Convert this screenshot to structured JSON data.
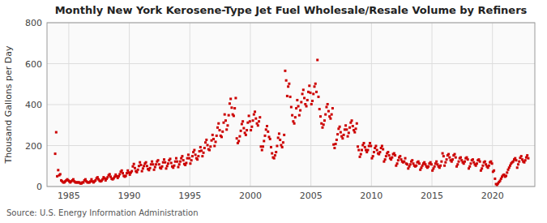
{
  "chart_data": {
    "type": "scatter",
    "title": "Monthly New York Kerosene-Type Jet Fuel Wholesale/Resale Volume by Refiners",
    "ylabel": "Thousand Gallons per Day",
    "source": "Source: U.S. Energy Information Administration",
    "color": "#cc0000",
    "marker": "square",
    "grid": true,
    "xlim": [
      1983.2,
      2023.5
    ],
    "ylim": [
      0,
      800
    ],
    "xticks": [
      1985,
      1990,
      1995,
      2000,
      2005,
      2010,
      2015,
      2020
    ],
    "yticks": [
      0,
      200,
      400,
      600,
      800
    ],
    "x": [
      1983.875,
      1983.9583333,
      1984.0416667,
      1984.125,
      1984.2083333,
      1984.2916667,
      1984.375,
      1984.4583333,
      1984.5416667,
      1984.625,
      1984.7083333,
      1984.7916667,
      1984.875,
      1984.9583333,
      1985.0416667,
      1985.125,
      1985.2083333,
      1985.2916667,
      1985.375,
      1985.4583333,
      1985.5416667,
      1985.625,
      1985.7083333,
      1985.7916667,
      1985.875,
      1985.9583333,
      1986.0416667,
      1986.125,
      1986.2083333,
      1986.2916667,
      1986.375,
      1986.4583333,
      1986.5416667,
      1986.625,
      1986.7083333,
      1986.7916667,
      1986.875,
      1986.9583333,
      1987.0416667,
      1987.125,
      1987.2083333,
      1987.2916667,
      1987.375,
      1987.4583333,
      1987.5416667,
      1987.625,
      1987.7083333,
      1987.7916667,
      1987.875,
      1987.9583333,
      1988.0416667,
      1988.125,
      1988.2083333,
      1988.2916667,
      1988.375,
      1988.4583333,
      1988.5416667,
      1988.625,
      1988.7083333,
      1988.7916667,
      1988.875,
      1988.9583333,
      1989.0416667,
      1989.125,
      1989.2083333,
      1989.2916667,
      1989.375,
      1989.4583333,
      1989.5416667,
      1989.625,
      1989.7083333,
      1989.7916667,
      1989.875,
      1989.9583333,
      1990.0416667,
      1990.125,
      1990.2083333,
      1990.2916667,
      1990.375,
      1990.4583333,
      1990.5416667,
      1990.625,
      1990.7083333,
      1990.7916667,
      1990.875,
      1990.9583333,
      1991.0416667,
      1991.125,
      1991.2083333,
      1991.2916667,
      1991.375,
      1991.4583333,
      1991.5416667,
      1991.625,
      1991.7083333,
      1991.7916667,
      1991.875,
      1991.9583333,
      1992.0416667,
      1992.125,
      1992.2083333,
      1992.2916667,
      1992.375,
      1992.4583333,
      1992.5416667,
      1992.625,
      1992.7083333,
      1992.7916667,
      1992.875,
      1992.9583333,
      1993.0416667,
      1993.125,
      1993.2083333,
      1993.2916667,
      1993.375,
      1993.4583333,
      1993.5416667,
      1993.625,
      1993.7083333,
      1993.7916667,
      1993.875,
      1993.9583333,
      1994.0416667,
      1994.125,
      1994.2083333,
      1994.2916667,
      1994.375,
      1994.4583333,
      1994.5416667,
      1994.625,
      1994.7083333,
      1994.7916667,
      1994.875,
      1994.9583333,
      1995.0416667,
      1995.125,
      1995.2083333,
      1995.2916667,
      1995.375,
      1995.4583333,
      1995.5416667,
      1995.625,
      1995.7083333,
      1995.7916667,
      1995.875,
      1995.9583333,
      1996.0416667,
      1996.125,
      1996.2083333,
      1996.2916667,
      1996.375,
      1996.4583333,
      1996.5416667,
      1996.625,
      1996.7083333,
      1996.7916667,
      1996.875,
      1996.9583333,
      1997.0416667,
      1997.125,
      1997.2083333,
      1997.2916667,
      1997.375,
      1997.4583333,
      1997.5416667,
      1997.625,
      1997.7083333,
      1997.7916667,
      1997.875,
      1997.9583333,
      1998.0416667,
      1998.125,
      1998.2083333,
      1998.2916667,
      1998.375,
      1998.4583333,
      1998.5416667,
      1998.625,
      1998.7083333,
      1998.7916667,
      1998.875,
      1998.9583333,
      1999.0416667,
      1999.125,
      1999.2083333,
      1999.2916667,
      1999.375,
      1999.4583333,
      1999.5416667,
      1999.625,
      1999.7083333,
      1999.7916667,
      1999.875,
      1999.9583333,
      2000.0416667,
      2000.125,
      2000.2083333,
      2000.2916667,
      2000.375,
      2000.4583333,
      2000.5416667,
      2000.625,
      2000.7083333,
      2000.7916667,
      2000.875,
      2000.9583333,
      2001.0416667,
      2001.125,
      2001.2083333,
      2001.2916667,
      2001.375,
      2001.4583333,
      2001.5416667,
      2001.625,
      2001.7083333,
      2001.7916667,
      2001.875,
      2001.9583333,
      2002.0416667,
      2002.125,
      2002.2083333,
      2002.2916667,
      2002.375,
      2002.4583333,
      2002.5416667,
      2002.625,
      2002.7083333,
      2002.7916667,
      2002.875,
      2002.9583333,
      2003.0416667,
      2003.125,
      2003.2083333,
      2003.2916667,
      2003.375,
      2003.4583333,
      2003.5416667,
      2003.625,
      2003.7083333,
      2003.7916667,
      2003.875,
      2003.9583333,
      2004.0416667,
      2004.125,
      2004.2083333,
      2004.2916667,
      2004.375,
      2004.4583333,
      2004.5416667,
      2004.625,
      2004.7083333,
      2004.7916667,
      2004.875,
      2004.9583333,
      2005.0416667,
      2005.125,
      2005.2083333,
      2005.2916667,
      2005.375,
      2005.4583333,
      2005.5416667,
      2005.625,
      2005.7083333,
      2005.7916667,
      2005.875,
      2005.9583333,
      2006.0416667,
      2006.125,
      2006.2083333,
      2006.2916667,
      2006.375,
      2006.4583333,
      2006.5416667,
      2006.625,
      2006.7083333,
      2006.7916667,
      2006.875,
      2006.9583333,
      2007.0416667,
      2007.125,
      2007.2083333,
      2007.2916667,
      2007.375,
      2007.4583333,
      2007.5416667,
      2007.625,
      2007.7083333,
      2007.7916667,
      2007.875,
      2007.9583333,
      2008.0416667,
      2008.125,
      2008.2083333,
      2008.2916667,
      2008.375,
      2008.4583333,
      2008.5416667,
      2008.625,
      2008.7083333,
      2008.7916667,
      2008.875,
      2008.9583333,
      2009.0416667,
      2009.125,
      2009.2083333,
      2009.2916667,
      2009.375,
      2009.4583333,
      2009.5416667,
      2009.625,
      2009.7083333,
      2009.7916667,
      2009.875,
      2009.9583333,
      2010.0416667,
      2010.125,
      2010.2083333,
      2010.2916667,
      2010.375,
      2010.4583333,
      2010.5416667,
      2010.625,
      2010.7083333,
      2010.7916667,
      2010.875,
      2010.9583333,
      2011.0416667,
      2011.125,
      2011.2083333,
      2011.2916667,
      2011.375,
      2011.4583333,
      2011.5416667,
      2011.625,
      2011.7083333,
      2011.7916667,
      2011.875,
      2011.9583333,
      2012.0416667,
      2012.125,
      2012.2083333,
      2012.2916667,
      2012.375,
      2012.4583333,
      2012.5416667,
      2012.625,
      2012.7083333,
      2012.7916667,
      2012.875,
      2012.9583333,
      2013.0416667,
      2013.125,
      2013.2083333,
      2013.2916667,
      2013.375,
      2013.4583333,
      2013.5416667,
      2013.625,
      2013.7083333,
      2013.7916667,
      2013.875,
      2013.9583333,
      2014.0416667,
      2014.125,
      2014.2083333,
      2014.2916667,
      2014.375,
      2014.4583333,
      2014.5416667,
      2014.625,
      2014.7083333,
      2014.7916667,
      2014.875,
      2014.9583333,
      2015.0416667,
      2015.125,
      2015.2083333,
      2015.2916667,
      2015.375,
      2015.4583333,
      2015.5416667,
      2015.625,
      2015.7083333,
      2015.7916667,
      2015.875,
      2015.9583333,
      2016.0416667,
      2016.125,
      2016.2083333,
      2016.2916667,
      2016.375,
      2016.4583333,
      2016.5416667,
      2016.625,
      2016.7083333,
      2016.7916667,
      2016.875,
      2016.9583333,
      2017.0416667,
      2017.125,
      2017.2083333,
      2017.2916667,
      2017.375,
      2017.4583333,
      2017.5416667,
      2017.625,
      2017.7083333,
      2017.7916667,
      2017.875,
      2017.9583333,
      2018.0416667,
      2018.125,
      2018.2083333,
      2018.2916667,
      2018.375,
      2018.4583333,
      2018.5416667,
      2018.625,
      2018.7083333,
      2018.7916667,
      2018.875,
      2018.9583333,
      2019.0416667,
      2019.125,
      2019.2083333,
      2019.2916667,
      2019.375,
      2019.4583333,
      2019.5416667,
      2019.625,
      2019.7083333,
      2019.7916667,
      2019.875,
      2019.9583333,
      2020.0416667,
      2020.125,
      2020.2083333,
      2020.2916667,
      2020.375,
      2020.4583333,
      2020.5416667,
      2020.625,
      2020.7083333,
      2020.7916667,
      2020.875,
      2020.9583333,
      2021.0416667,
      2021.125,
      2021.2083333,
      2021.2916667,
      2021.375,
      2021.4583333,
      2021.5416667,
      2021.625,
      2021.7083333,
      2021.7916667,
      2021.875,
      2021.9583333,
      2022.0416667,
      2022.125,
      2022.2083333,
      2022.2916667,
      2022.375,
      2022.4583333,
      2022.5416667,
      2022.625,
      2022.7083333,
      2022.7916667,
      2022.875,
      2022.9583333
    ],
    "values": [
      160,
      265,
      50,
      80,
      55,
      60,
      30,
      25,
      20,
      20,
      25,
      30,
      35,
      30,
      25,
      20,
      25,
      30,
      35,
      25,
      20,
      20,
      20,
      20,
      20,
      15,
      15,
      20,
      20,
      30,
      35,
      25,
      20,
      20,
      20,
      25,
      35,
      25,
      20,
      25,
      30,
      40,
      45,
      35,
      28,
      25,
      28,
      35,
      45,
      40,
      30,
      38,
      45,
      55,
      60,
      48,
      38,
      35,
      40,
      48,
      58,
      50,
      42,
      50,
      60,
      72,
      78,
      65,
      52,
      48,
      52,
      65,
      78,
      68,
      58,
      68,
      75,
      98,
      110,
      90,
      75,
      70,
      82,
      100,
      118,
      105,
      75,
      88,
      100,
      112,
      118,
      100,
      85,
      80,
      90,
      108,
      122,
      108,
      82,
      95,
      108,
      122,
      128,
      108,
      92,
      88,
      98,
      118,
      132,
      118,
      88,
      100,
      112,
      128,
      135,
      115,
      98,
      92,
      102,
      122,
      138,
      122,
      95,
      108,
      122,
      138,
      148,
      128,
      110,
      105,
      115,
      138,
      155,
      138,
      112,
      128,
      148,
      168,
      178,
      155,
      138,
      132,
      148,
      172,
      192,
      175,
      148,
      165,
      188,
      215,
      228,
      202,
      182,
      178,
      195,
      225,
      252,
      232,
      198,
      218,
      248,
      288,
      308,
      275,
      248,
      242,
      268,
      312,
      352,
      322,
      278,
      298,
      348,
      405,
      428,
      385,
      352,
      345,
      382,
      432,
      235,
      212,
      222,
      245,
      272,
      305,
      318,
      285,
      262,
      252,
      275,
      312,
      345,
      318,
      275,
      292,
      322,
      352,
      365,
      332,
      308,
      298,
      318,
      338,
      195,
      178,
      195,
      222,
      248,
      278,
      295,
      268,
      242,
      232,
      192,
      162,
      142,
      138,
      152,
      168,
      198,
      238,
      258,
      228,
      202,
      192,
      215,
      252,
      565,
      518,
      442,
      488,
      502,
      438,
      388,
      348,
      318,
      308,
      338,
      382,
      422,
      392,
      348,
      372,
      412,
      452,
      472,
      432,
      402,
      392,
      422,
      462,
      492,
      458,
      402,
      418,
      452,
      488,
      502,
      462,
      618,
      438,
      378,
      342,
      308,
      288,
      302,
      322,
      352,
      388,
      402,
      368,
      342,
      332,
      352,
      382,
      205,
      188,
      208,
      228,
      255,
      282,
      292,
      265,
      245,
      235,
      252,
      278,
      298,
      278,
      245,
      262,
      288,
      312,
      322,
      295,
      275,
      265,
      282,
      308,
      195,
      178,
      145,
      158,
      178,
      202,
      212,
      192,
      178,
      168,
      178,
      198,
      212,
      198,
      138,
      148,
      168,
      188,
      198,
      178,
      162,
      158,
      168,
      188,
      198,
      182,
      122,
      132,
      148,
      162,
      168,
      152,
      138,
      132,
      142,
      158,
      162,
      152,
      102,
      112,
      128,
      142,
      148,
      132,
      122,
      118,
      122,
      138,
      112,
      108,
      88,
      98,
      108,
      122,
      128,
      112,
      102,
      98,
      102,
      118,
      122,
      112,
      82,
      92,
      102,
      112,
      118,
      108,
      98,
      92,
      98,
      112,
      118,
      108,
      78,
      88,
      98,
      112,
      122,
      108,
      98,
      92,
      102,
      122,
      162,
      148,
      102,
      118,
      132,
      152,
      158,
      142,
      128,
      122,
      132,
      152,
      158,
      142,
      98,
      108,
      122,
      138,
      142,
      128,
      118,
      112,
      122,
      138,
      142,
      132,
      88,
      98,
      112,
      128,
      132,
      118,
      108,
      102,
      112,
      128,
      132,
      122,
      78,
      88,
      102,
      118,
      122,
      108,
      98,
      92,
      102,
      118,
      122,
      112,
      72,
      78,
      38,
      12,
      8,
      15,
      22,
      28,
      38,
      48,
      55,
      58,
      48,
      52,
      68,
      82,
      92,
      102,
      112,
      118,
      122,
      132,
      138,
      128,
      92,
      108,
      122,
      140,
      148,
      132,
      122,
      118,
      128,
      142,
      152,
      138
    ]
  }
}
